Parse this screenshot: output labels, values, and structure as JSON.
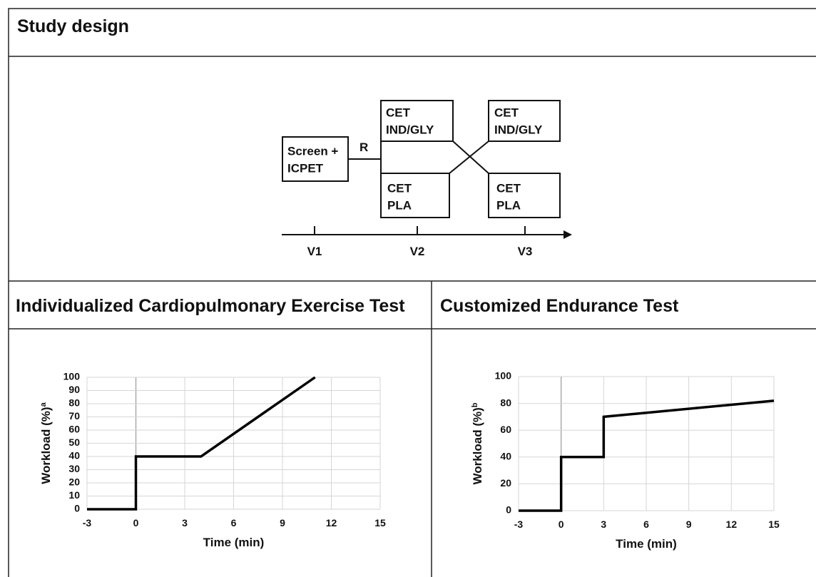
{
  "header": {
    "title": "Study design"
  },
  "study_design": {
    "nodes": [
      {
        "lines": [
          "Screen +",
          "ICPET"
        ]
      },
      {
        "lines": [
          "CET",
          "IND/GLY"
        ]
      },
      {
        "lines": [
          "CET",
          "PLA"
        ]
      },
      {
        "lines": [
          "CET",
          "IND/GLY"
        ]
      },
      {
        "lines": [
          "CET",
          "PLA"
        ]
      }
    ],
    "randomization_label": "R",
    "visits": [
      "V1",
      "V2",
      "V3"
    ]
  },
  "chart_data": [
    {
      "type": "line",
      "title": "Individualized Cardiopulmonary Exercise Test",
      "xlabel": "Time (min)",
      "ylabel": "Workload (%)",
      "ylabel_superscript": "a",
      "x": [
        -3,
        0,
        0,
        4,
        11
      ],
      "series": [
        {
          "color": "#000000",
          "values": [
            0,
            0,
            40,
            40,
            100
          ]
        }
      ],
      "xlim": [
        -3,
        15
      ],
      "xticks": [
        -3,
        0,
        3,
        6,
        9,
        12,
        15
      ],
      "ylim": [
        0,
        100
      ],
      "yticks": [
        0,
        10,
        20,
        30,
        40,
        50,
        60,
        70,
        80,
        90,
        100
      ],
      "grid": true
    },
    {
      "type": "line",
      "title": "Customized Endurance Test",
      "xlabel": "Time (min)",
      "ylabel": "Workload (%)",
      "ylabel_superscript": "b",
      "x": [
        -3,
        0,
        0,
        3,
        3,
        15
      ],
      "series": [
        {
          "color": "#000000",
          "values": [
            0,
            0,
            40,
            40,
            70,
            82
          ]
        }
      ],
      "xlim": [
        -3,
        15
      ],
      "xticks": [
        -3,
        0,
        3,
        6,
        9,
        12,
        15
      ],
      "ylim": [
        0,
        100
      ],
      "yticks": [
        0,
        20,
        40,
        60,
        80,
        100
      ],
      "grid": true
    }
  ]
}
